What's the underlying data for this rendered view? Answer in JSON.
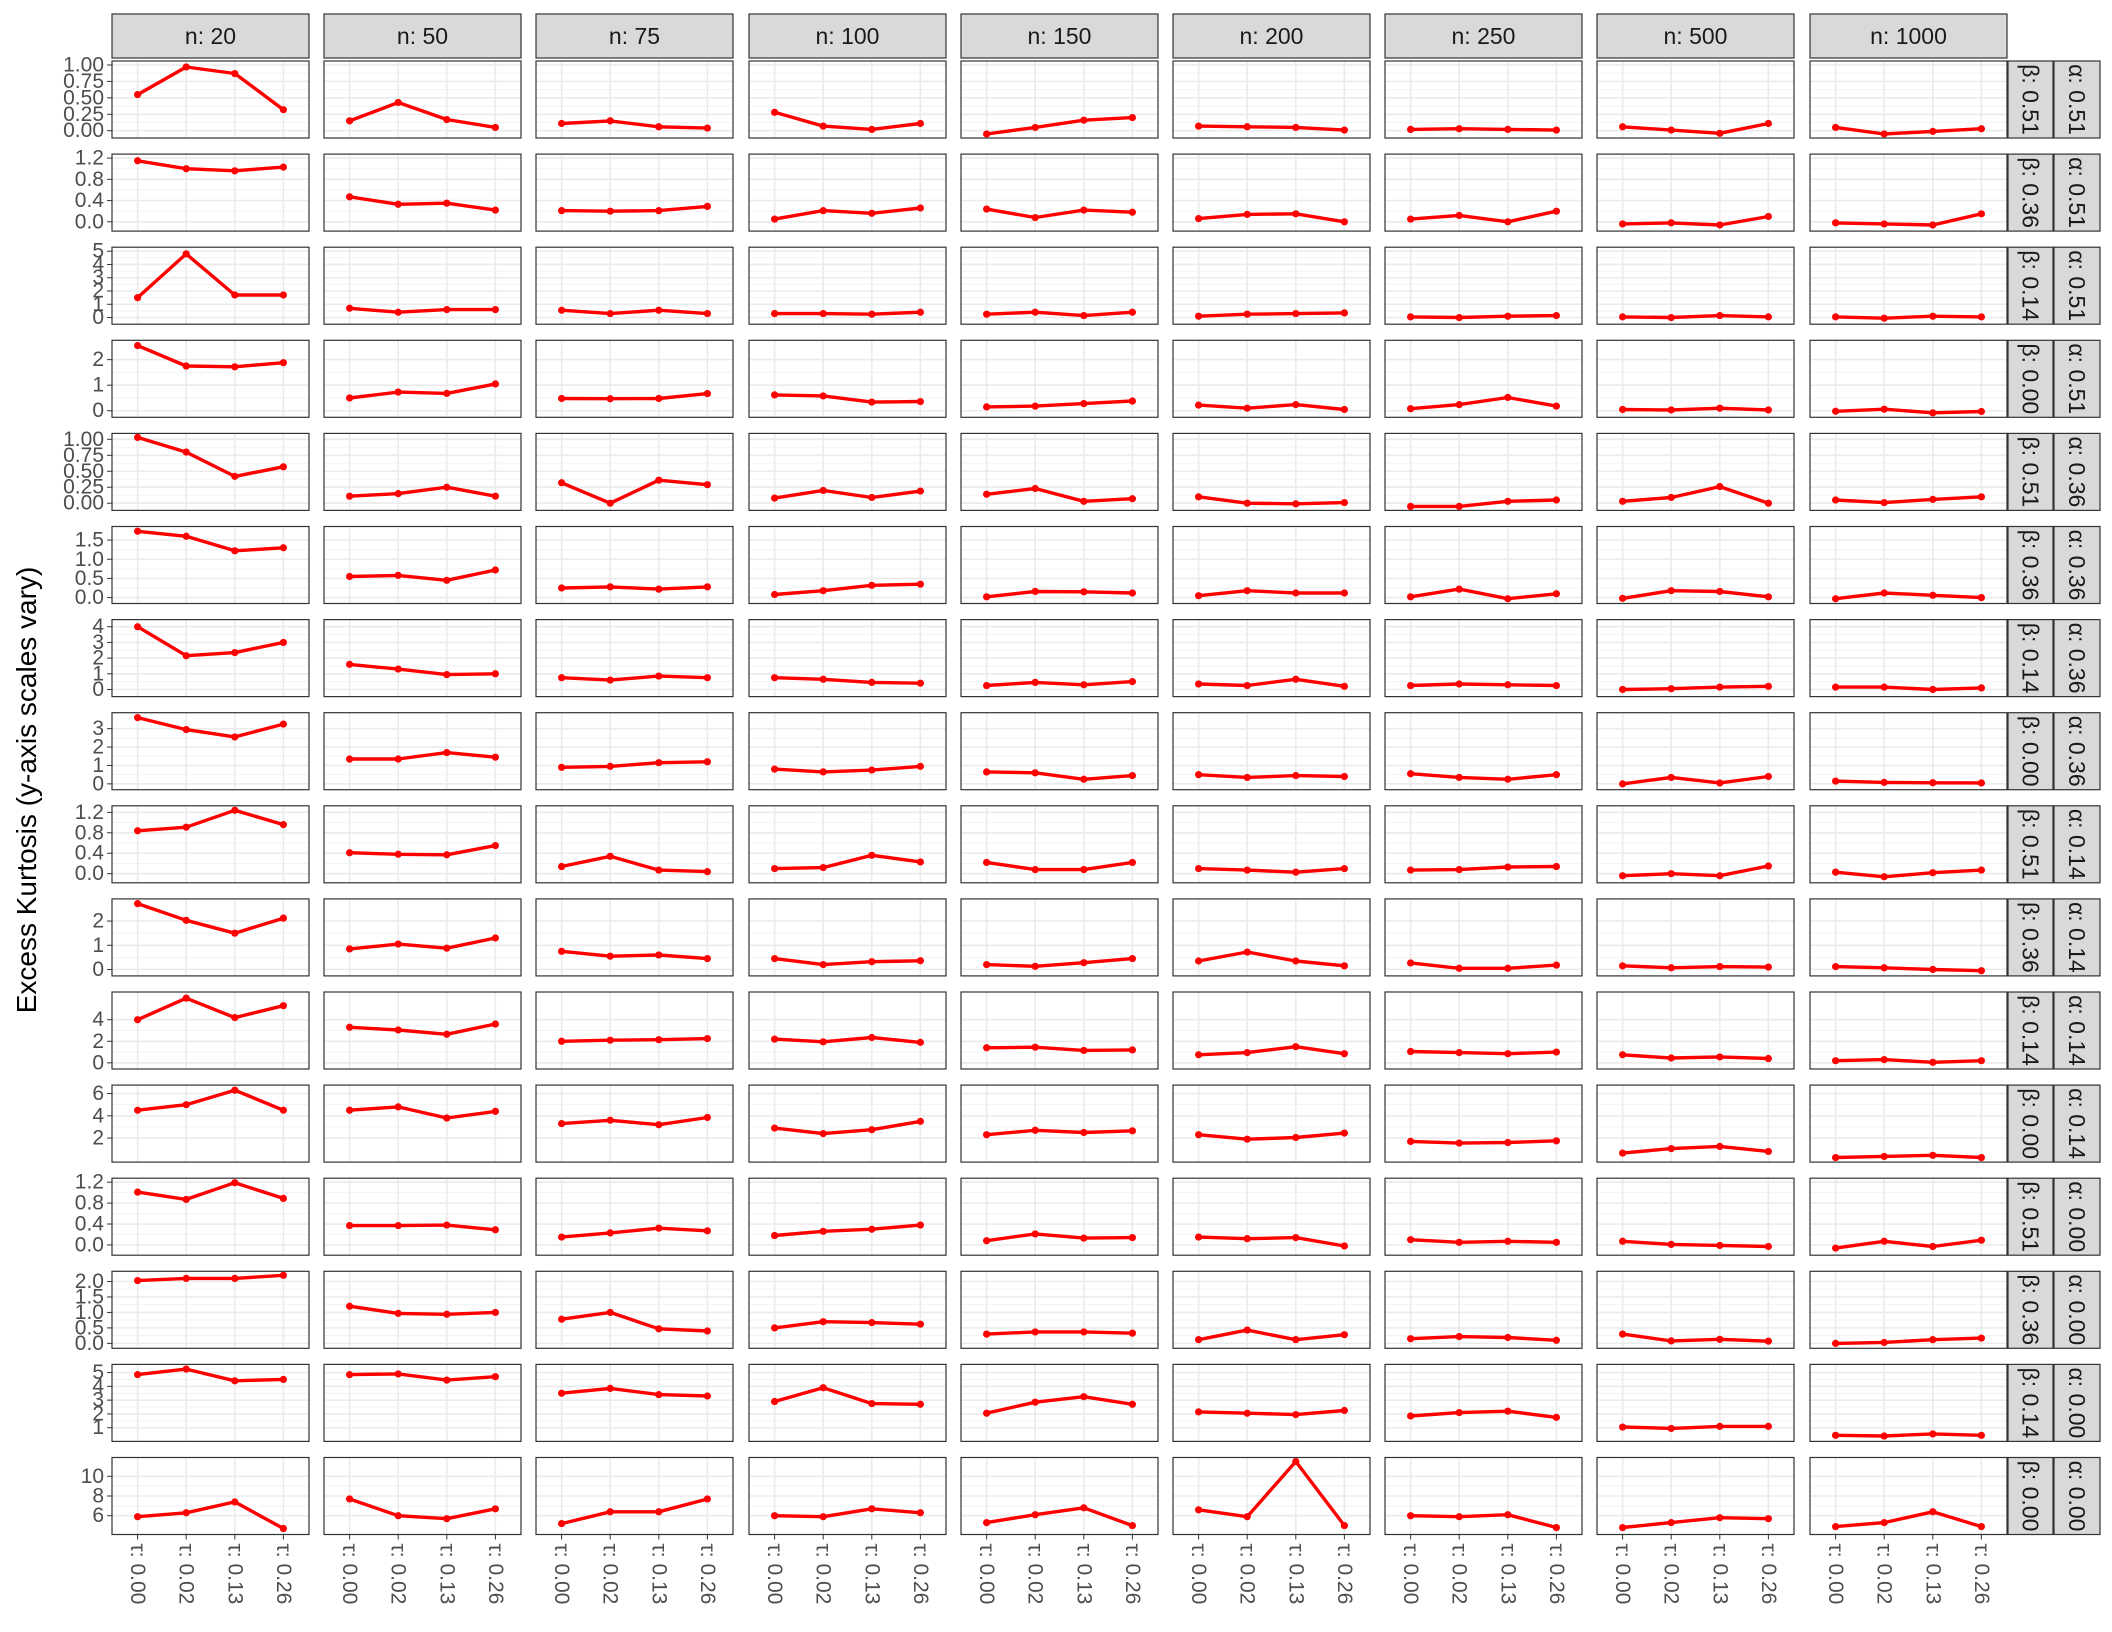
{
  "chart_data": {
    "type": "line",
    "facet_layout": "grid",
    "ylabel": "Excess Kurtosis (y-axis scales vary)",
    "xlabel": "",
    "x_ticks": [
      "τ: 0.00",
      "τ: 0.02",
      "τ: 0.13",
      "τ: 0.26"
    ],
    "col_strips": [
      "n: 20",
      "n: 50",
      "n: 75",
      "n: 100",
      "n: 150",
      "n: 200",
      "n: 250",
      "n: 500",
      "n: 1000"
    ],
    "colors": {
      "line": "#ff0000",
      "strip_bg": "#d9d9d9",
      "grid": "#ebebeb",
      "panel_border": "#333333"
    },
    "rows": [
      {
        "beta_label": "β: 0.51",
        "alpha_label": "α: 0.51",
        "ylim": [
          -0.05,
          1.0
        ],
        "ticks": [
          1.0,
          0.75,
          0.5,
          0.25,
          0.0
        ],
        "tick_labels": [
          "1.00",
          "0.75",
          "0.50",
          "0.25",
          "0.00"
        ],
        "series": [
          [
            0.55,
            0.97,
            0.87,
            0.32
          ],
          [
            0.15,
            0.43,
            0.17,
            0.05
          ],
          [
            0.11,
            0.15,
            0.06,
            0.04
          ],
          [
            0.28,
            0.07,
            0.02,
            0.11
          ],
          [
            -0.05,
            0.05,
            0.16,
            0.2
          ],
          [
            0.07,
            0.06,
            0.05,
            0.01
          ],
          [
            0.02,
            0.03,
            0.02,
            0.01
          ],
          [
            0.06,
            0.01,
            -0.04,
            0.11
          ],
          [
            0.05,
            -0.05,
            -0.01,
            0.03
          ]
        ]
      },
      {
        "beta_label": "β: 0.36",
        "alpha_label": "α: 0.51",
        "ylim": [
          -0.1,
          1.2
        ],
        "ticks": [
          1.2,
          0.8,
          0.4,
          0.0
        ],
        "tick_labels": [
          "1.2",
          "0.8",
          "0.4",
          "0.0"
        ],
        "series": [
          [
            1.15,
            1.0,
            0.96,
            1.03
          ],
          [
            0.47,
            0.33,
            0.35,
            0.22
          ],
          [
            0.21,
            0.2,
            0.21,
            0.29
          ],
          [
            0.05,
            0.21,
            0.16,
            0.26
          ],
          [
            0.24,
            0.08,
            0.22,
            0.18
          ],
          [
            0.06,
            0.14,
            0.15,
            0.0
          ],
          [
            0.05,
            0.12,
            0.0,
            0.2
          ],
          [
            -0.04,
            -0.02,
            -0.06,
            0.1
          ],
          [
            -0.02,
            -0.04,
            -0.06,
            0.15
          ]
        ]
      },
      {
        "beta_label": "β: 0.14",
        "alpha_label": "α: 0.51",
        "ylim": [
          -0.2,
          5.0
        ],
        "ticks": [
          5,
          4,
          3,
          2,
          1,
          0
        ],
        "tick_labels": [
          "5",
          "4",
          "3",
          "2",
          "1",
          "0"
        ],
        "series": [
          [
            1.5,
            4.8,
            1.7,
            1.7
          ],
          [
            0.7,
            0.4,
            0.6,
            0.6
          ],
          [
            0.55,
            0.3,
            0.55,
            0.3
          ],
          [
            0.3,
            0.3,
            0.25,
            0.4
          ],
          [
            0.25,
            0.4,
            0.15,
            0.4
          ],
          [
            0.1,
            0.25,
            0.3,
            0.35
          ],
          [
            0.05,
            0.0,
            0.1,
            0.15
          ],
          [
            0.05,
            0.0,
            0.15,
            0.05
          ],
          [
            0.05,
            -0.05,
            0.1,
            0.05
          ]
        ]
      },
      {
        "beta_label": "β: 0.00",
        "alpha_label": "α: 0.51",
        "ylim": [
          -0.1,
          2.6
        ],
        "ticks": [
          2,
          1,
          0
        ],
        "tick_labels": [
          "2",
          "1",
          "0"
        ],
        "series": [
          [
            2.55,
            1.75,
            1.72,
            1.88
          ],
          [
            0.5,
            0.73,
            0.68,
            1.05
          ],
          [
            0.48,
            0.47,
            0.48,
            0.67
          ],
          [
            0.62,
            0.58,
            0.34,
            0.36
          ],
          [
            0.15,
            0.18,
            0.28,
            0.38
          ],
          [
            0.22,
            0.1,
            0.24,
            0.05
          ],
          [
            0.08,
            0.24,
            0.52,
            0.18
          ],
          [
            0.05,
            0.03,
            0.1,
            0.03
          ],
          [
            -0.02,
            0.06,
            -0.08,
            -0.03
          ]
        ]
      },
      {
        "beta_label": "β: 0.51",
        "alpha_label": "α: 0.36",
        "ylim": [
          -0.05,
          1.03
        ],
        "ticks": [
          1.0,
          0.75,
          0.5,
          0.25,
          0.0
        ],
        "tick_labels": [
          "1.00",
          "0.75",
          "0.50",
          "0.25",
          "0.00"
        ],
        "series": [
          [
            1.03,
            0.8,
            0.42,
            0.57
          ],
          [
            0.11,
            0.15,
            0.25,
            0.11
          ],
          [
            0.32,
            0.0,
            0.36,
            0.29
          ],
          [
            0.08,
            0.2,
            0.09,
            0.19
          ],
          [
            0.14,
            0.23,
            0.03,
            0.07
          ],
          [
            0.1,
            0.0,
            -0.01,
            0.01
          ],
          [
            -0.05,
            -0.05,
            0.03,
            0.05
          ],
          [
            0.03,
            0.09,
            0.26,
            0.0
          ],
          [
            0.05,
            0.01,
            0.06,
            0.1
          ]
        ]
      },
      {
        "beta_label": "β: 0.36",
        "alpha_label": "α: 0.36",
        "ylim": [
          -0.05,
          1.75
        ],
        "ticks": [
          1.5,
          1.0,
          0.5,
          0.0
        ],
        "tick_labels": [
          "1.5",
          "1.0",
          "0.5",
          "0.0"
        ],
        "series": [
          [
            1.73,
            1.6,
            1.22,
            1.3
          ],
          [
            0.55,
            0.58,
            0.45,
            0.72
          ],
          [
            0.25,
            0.28,
            0.22,
            0.28
          ],
          [
            0.08,
            0.18,
            0.32,
            0.35
          ],
          [
            0.02,
            0.16,
            0.15,
            0.12
          ],
          [
            0.05,
            0.18,
            0.12,
            0.12
          ],
          [
            0.02,
            0.22,
            -0.03,
            0.1
          ],
          [
            -0.02,
            0.18,
            0.16,
            0.02
          ],
          [
            -0.03,
            0.12,
            0.06,
            0.0
          ]
        ]
      },
      {
        "beta_label": "β: 0.14",
        "alpha_label": "α: 0.36",
        "ylim": [
          -0.2,
          4.2
        ],
        "ticks": [
          4,
          3,
          2,
          1,
          0
        ],
        "tick_labels": [
          "4",
          "3",
          "2",
          "1",
          "0"
        ],
        "series": [
          [
            4.0,
            2.15,
            2.35,
            3.0
          ],
          [
            1.6,
            1.3,
            0.95,
            1.0
          ],
          [
            0.75,
            0.6,
            0.85,
            0.75
          ],
          [
            0.75,
            0.65,
            0.45,
            0.4
          ],
          [
            0.25,
            0.45,
            0.3,
            0.5
          ],
          [
            0.35,
            0.25,
            0.65,
            0.2
          ],
          [
            0.25,
            0.35,
            0.3,
            0.25
          ],
          [
            0.0,
            0.05,
            0.15,
            0.2
          ],
          [
            0.15,
            0.15,
            0.0,
            0.1
          ]
        ]
      },
      {
        "beta_label": "β: 0.00",
        "alpha_label": "α: 0.36",
        "ylim": [
          -0.1,
          3.65
        ],
        "ticks": [
          3,
          2,
          1,
          0
        ],
        "tick_labels": [
          "3",
          "2",
          "1",
          "0"
        ],
        "series": [
          [
            3.6,
            2.95,
            2.55,
            3.25
          ],
          [
            1.35,
            1.35,
            1.7,
            1.45
          ],
          [
            0.9,
            0.95,
            1.15,
            1.2
          ],
          [
            0.8,
            0.65,
            0.75,
            0.95
          ],
          [
            0.65,
            0.6,
            0.25,
            0.45
          ],
          [
            0.5,
            0.35,
            0.45,
            0.4
          ],
          [
            0.55,
            0.35,
            0.25,
            0.5
          ],
          [
            0.0,
            0.35,
            0.05,
            0.4
          ],
          [
            0.15,
            0.08,
            0.06,
            0.05
          ]
        ]
      },
      {
        "beta_label": "β: 0.51",
        "alpha_label": "α: 0.14",
        "ylim": [
          -0.1,
          1.25
        ],
        "ticks": [
          1.2,
          0.8,
          0.4,
          0.0
        ],
        "tick_labels": [
          "1.2",
          "0.8",
          "0.4",
          "0.0"
        ],
        "series": [
          [
            0.84,
            0.91,
            1.24,
            0.96
          ],
          [
            0.41,
            0.38,
            0.37,
            0.55
          ],
          [
            0.14,
            0.34,
            0.07,
            0.04
          ],
          [
            0.1,
            0.12,
            0.36,
            0.23
          ],
          [
            0.22,
            0.08,
            0.08,
            0.22
          ],
          [
            0.1,
            0.07,
            0.03,
            0.1
          ],
          [
            0.07,
            0.08,
            0.13,
            0.14
          ],
          [
            -0.04,
            0.0,
            -0.04,
            0.15
          ],
          [
            0.03,
            -0.06,
            0.02,
            0.07
          ]
        ]
      },
      {
        "beta_label": "β: 0.36",
        "alpha_label": "α: 0.14",
        "ylim": [
          -0.1,
          2.75
        ],
        "ticks": [
          2,
          1,
          0
        ],
        "tick_labels": [
          "2",
          "1",
          "0"
        ],
        "series": [
          [
            2.72,
            2.03,
            1.5,
            2.12
          ],
          [
            0.85,
            1.05,
            0.88,
            1.3
          ],
          [
            0.75,
            0.55,
            0.6,
            0.45
          ],
          [
            0.45,
            0.2,
            0.32,
            0.36
          ],
          [
            0.2,
            0.13,
            0.28,
            0.45
          ],
          [
            0.35,
            0.72,
            0.35,
            0.15
          ],
          [
            0.27,
            0.05,
            0.05,
            0.18
          ],
          [
            0.15,
            0.07,
            0.12,
            0.1
          ],
          [
            0.12,
            0.07,
            0.0,
            -0.05
          ]
        ]
      },
      {
        "beta_label": "β: 0.14",
        "alpha_label": "α: 0.14",
        "ylim": [
          -0.2,
          6.2
        ],
        "ticks": [
          4,
          2,
          0
        ],
        "tick_labels": [
          "4",
          "2",
          "0"
        ],
        "series": [
          [
            4.0,
            6.0,
            4.2,
            5.3
          ],
          [
            3.3,
            3.05,
            2.65,
            3.6
          ],
          [
            2.0,
            2.1,
            2.15,
            2.25
          ],
          [
            2.2,
            1.95,
            2.35,
            1.9
          ],
          [
            1.4,
            1.45,
            1.15,
            1.2
          ],
          [
            0.75,
            0.95,
            1.5,
            0.85
          ],
          [
            1.05,
            0.95,
            0.85,
            1.0
          ],
          [
            0.75,
            0.45,
            0.55,
            0.4
          ],
          [
            0.2,
            0.3,
            0.05,
            0.2
          ]
        ]
      },
      {
        "beta_label": "β: 0.00",
        "alpha_label": "α: 0.14",
        "ylim": [
          0.2,
          6.4
        ],
        "ticks": [
          6,
          4,
          2
        ],
        "tick_labels": [
          "6",
          "4",
          "2"
        ],
        "series": [
          [
            4.5,
            5.0,
            6.3,
            4.5
          ],
          [
            4.5,
            4.8,
            3.8,
            4.4
          ],
          [
            3.3,
            3.6,
            3.2,
            3.85
          ],
          [
            2.9,
            2.4,
            2.75,
            3.5
          ],
          [
            2.3,
            2.7,
            2.5,
            2.65
          ],
          [
            2.3,
            1.9,
            2.05,
            2.45
          ],
          [
            1.7,
            1.55,
            1.6,
            1.75
          ],
          [
            0.65,
            1.05,
            1.25,
            0.8
          ],
          [
            0.25,
            0.35,
            0.45,
            0.25
          ]
        ]
      },
      {
        "beta_label": "β: 0.51",
        "alpha_label": "α: 0.00",
        "ylim": [
          -0.12,
          1.2
        ],
        "ticks": [
          1.2,
          0.8,
          0.4,
          0.0
        ],
        "tick_labels": [
          "1.2",
          "0.8",
          "0.4",
          "0.0"
        ],
        "series": [
          [
            1.01,
            0.87,
            1.19,
            0.89
          ],
          [
            0.37,
            0.37,
            0.38,
            0.29
          ],
          [
            0.15,
            0.23,
            0.32,
            0.27
          ],
          [
            0.18,
            0.26,
            0.3,
            0.38
          ],
          [
            0.08,
            0.21,
            0.13,
            0.14
          ],
          [
            0.15,
            0.12,
            0.14,
            -0.02
          ],
          [
            0.1,
            0.05,
            0.07,
            0.05
          ],
          [
            0.07,
            0.01,
            -0.01,
            -0.03
          ],
          [
            -0.06,
            0.07,
            -0.03,
            0.09
          ]
        ]
      },
      {
        "beta_label": "β: 0.36",
        "alpha_label": "α: 0.00",
        "ylim": [
          -0.03,
          2.2
        ],
        "ticks": [
          2.0,
          1.5,
          1.0,
          0.5,
          0.0
        ],
        "tick_labels": [
          "2.0",
          "1.5",
          "1.0",
          "0.5",
          "0.0"
        ],
        "series": [
          [
            2.03,
            2.1,
            2.1,
            2.2
          ],
          [
            1.2,
            0.97,
            0.94,
            1.0
          ],
          [
            0.78,
            1.0,
            0.47,
            0.4
          ],
          [
            0.5,
            0.7,
            0.67,
            0.62
          ],
          [
            0.3,
            0.37,
            0.37,
            0.33
          ],
          [
            0.12,
            0.43,
            0.12,
            0.28
          ],
          [
            0.15,
            0.22,
            0.19,
            0.1
          ],
          [
            0.3,
            0.08,
            0.13,
            0.07
          ],
          [
            0.0,
            0.03,
            0.12,
            0.17
          ]
        ]
      },
      {
        "beta_label": "β: 0.14",
        "alpha_label": "α: 0.00",
        "ylim": [
          0.3,
          5.3
        ],
        "ticks": [
          5,
          4,
          3,
          2,
          1
        ],
        "tick_labels": [
          "5",
          "4",
          "3",
          "2",
          "1"
        ],
        "series": [
          [
            4.85,
            5.25,
            4.4,
            4.5
          ],
          [
            4.85,
            4.9,
            4.45,
            4.7
          ],
          [
            3.5,
            3.85,
            3.4,
            3.3
          ],
          [
            2.9,
            3.9,
            2.75,
            2.7
          ],
          [
            2.05,
            2.85,
            3.25,
            2.7
          ],
          [
            2.15,
            2.05,
            1.95,
            2.25
          ],
          [
            1.85,
            2.1,
            2.2,
            1.75
          ],
          [
            1.05,
            0.95,
            1.1,
            1.1
          ],
          [
            0.45,
            0.4,
            0.55,
            0.45
          ]
        ]
      },
      {
        "beta_label": "β: 0.00",
        "alpha_label": "α: 0.00",
        "ylim": [
          4.5,
          11.5
        ],
        "ticks": [
          10,
          8,
          6
        ],
        "tick_labels": [
          "10",
          "8",
          "6"
        ],
        "series": [
          [
            5.9,
            6.3,
            7.4,
            4.7
          ],
          [
            7.7,
            6.0,
            5.7,
            6.7
          ],
          [
            5.2,
            6.4,
            6.4,
            7.7
          ],
          [
            6.0,
            5.9,
            6.7,
            6.3
          ],
          [
            5.3,
            6.1,
            6.8,
            5.0
          ],
          [
            6.6,
            5.9,
            11.5,
            5.0
          ],
          [
            6.0,
            5.9,
            6.1,
            4.8
          ],
          [
            4.8,
            5.3,
            5.8,
            5.7
          ],
          [
            4.9,
            5.3,
            6.4,
            4.9
          ]
        ]
      }
    ]
  }
}
